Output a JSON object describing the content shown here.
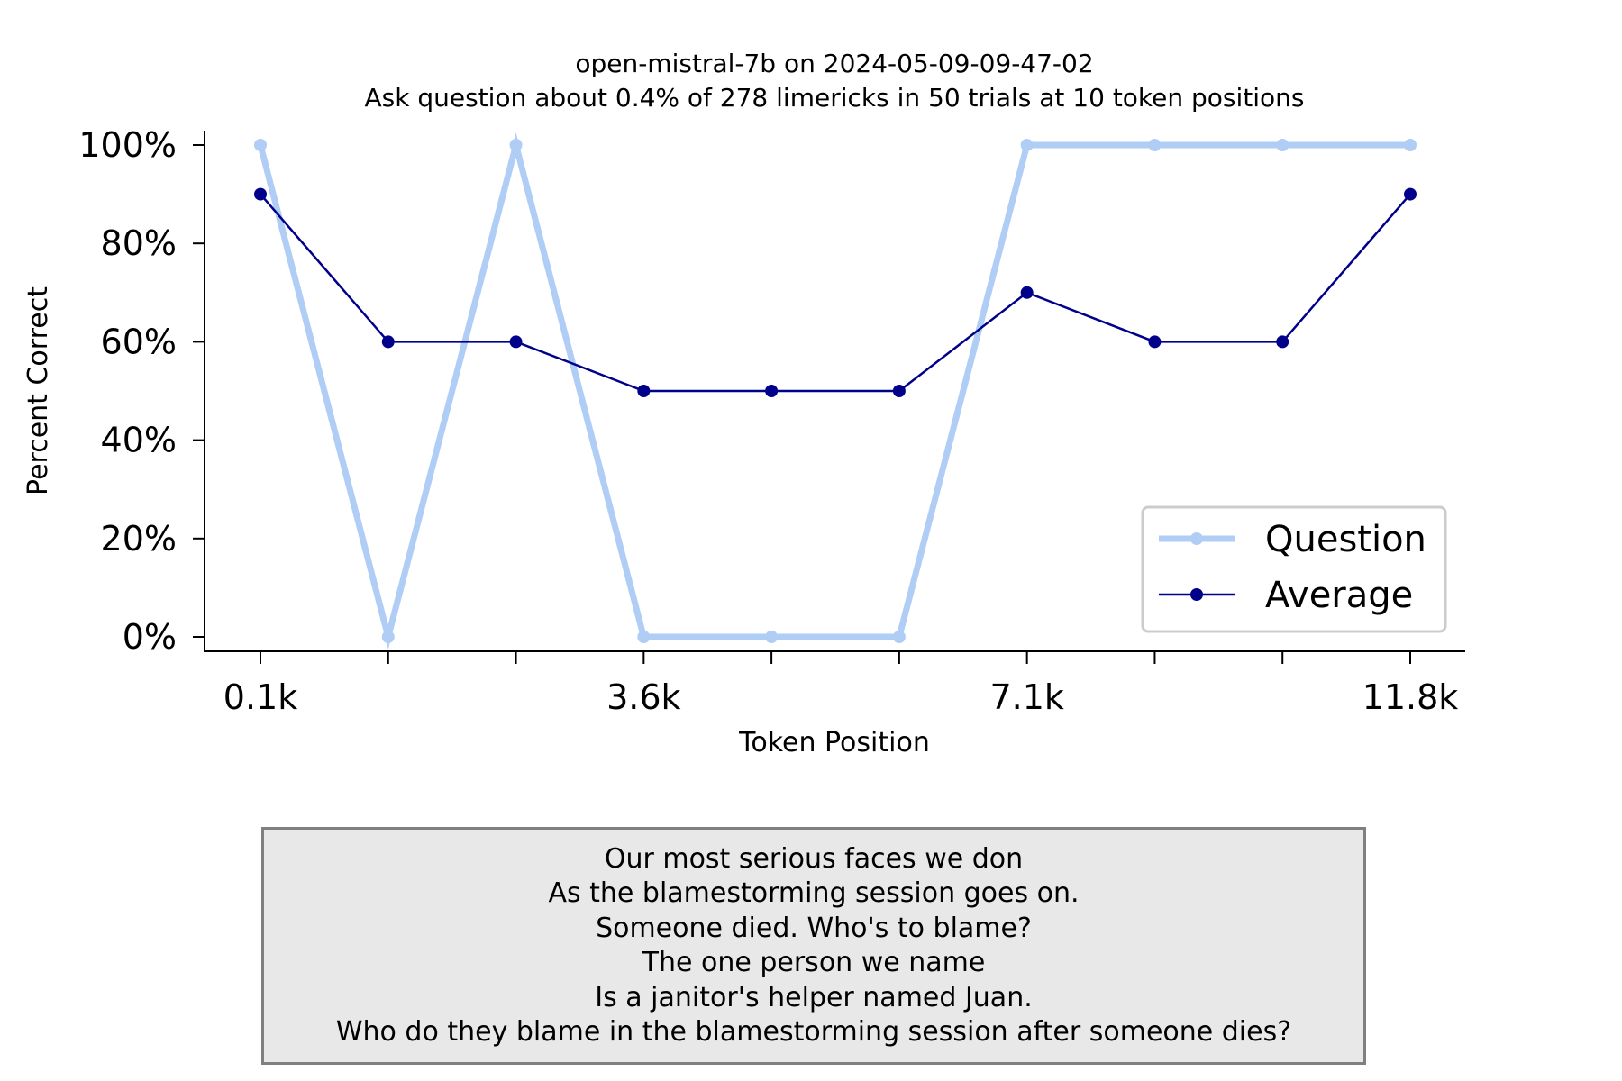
{
  "chart_data": {
    "type": "line",
    "title": "open-mistral-7b on 2024-05-09-09-47-02",
    "subtitle": "Ask question about 0.4% of 278 limericks in 50 trials at 10 token positions",
    "xlabel": "Token Position",
    "ylabel": "Percent Correct",
    "x": [
      0.1,
      1.27,
      2.43,
      3.6,
      4.77,
      5.93,
      7.1,
      8.27,
      9.43,
      11.8
    ],
    "x_tick_labels": [
      "0.1k",
      "3.6k",
      "7.1k",
      "11.8k"
    ],
    "y_tick_labels": [
      "0%",
      "20%",
      "40%",
      "60%",
      "80%",
      "100%"
    ],
    "ylim": [
      0,
      100
    ],
    "series": [
      {
        "name": "Question",
        "values": [
          100,
          0,
          100,
          0,
          0,
          0,
          100,
          100,
          100,
          100
        ],
        "color": "#b0cdf6"
      },
      {
        "name": "Average",
        "values": [
          90,
          60,
          60,
          50,
          50,
          50,
          70,
          60,
          60,
          90
        ],
        "color": "#00008b"
      }
    ],
    "legend_position": "lower-right",
    "grid": false
  },
  "limerick": {
    "lines": [
      "Our most serious faces we don",
      "As the blamestorming session goes on.",
      "Someone died. Who's to blame?",
      "The one person we name",
      "Is a janitor's helper named Juan.",
      "Who do they blame in the blamestorming session after someone dies?"
    ]
  }
}
